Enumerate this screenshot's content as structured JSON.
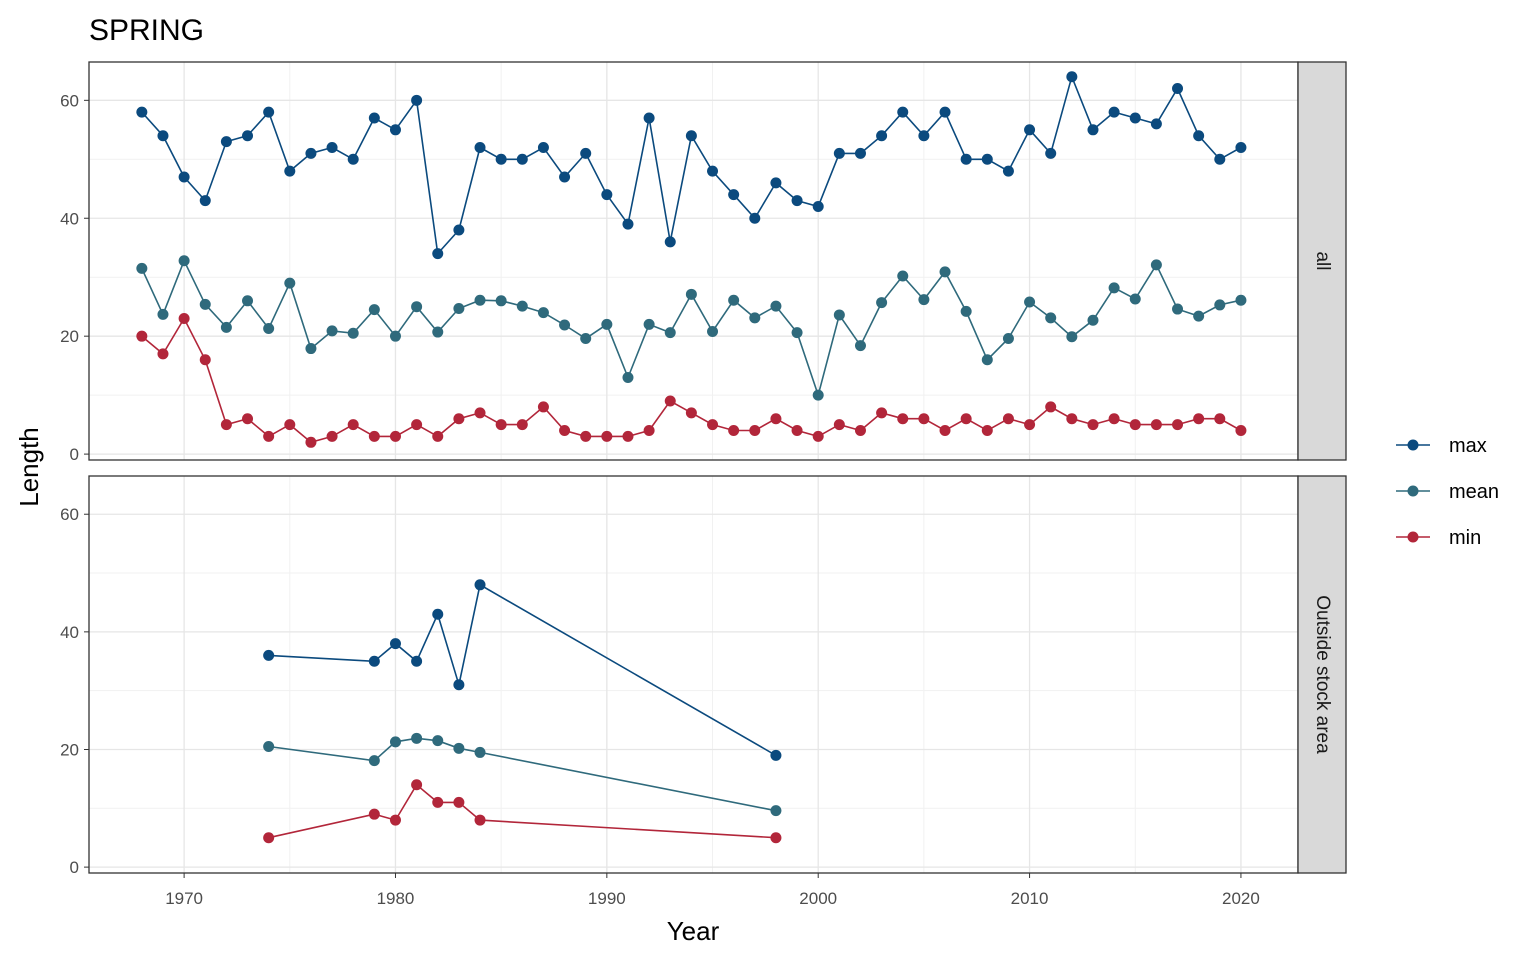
{
  "chart_data": {
    "type": "line",
    "title": "SPRING",
    "xlabel": "Year",
    "ylabel": "Length",
    "xlim": [
      1965.5,
      2022.7
    ],
    "ylim": [
      -1,
      66.5
    ],
    "x_ticks": [
      1970,
      1980,
      1990,
      2000,
      2010,
      2020
    ],
    "y_ticks": [
      0,
      20,
      40,
      60
    ],
    "grid": true,
    "legend_position": "right",
    "series_colors": {
      "max": "#0b4a7e",
      "mean": "#2f6a7c",
      "min": "#b2263a"
    },
    "legend": [
      {
        "name": "max",
        "color": "#0b4a7e"
      },
      {
        "name": "mean",
        "color": "#2f6a7c"
      },
      {
        "name": "min",
        "color": "#b2263a"
      }
    ],
    "panels": [
      {
        "strip": "all",
        "series": [
          {
            "name": "max",
            "x": [
              1968,
              1969,
              1970,
              1971,
              1972,
              1973,
              1974,
              1975,
              1976,
              1977,
              1978,
              1979,
              1980,
              1981,
              1982,
              1983,
              1984,
              1985,
              1986,
              1987,
              1988,
              1989,
              1990,
              1991,
              1992,
              1993,
              1994,
              1995,
              1996,
              1997,
              1998,
              1999,
              2000,
              2001,
              2002,
              2003,
              2004,
              2005,
              2006,
              2007,
              2008,
              2009,
              2010,
              2011,
              2012,
              2013,
              2014,
              2015,
              2016,
              2017,
              2018,
              2019,
              2020
            ],
            "y": [
              58,
              54,
              47,
              43,
              53,
              54,
              58,
              48,
              51,
              52,
              50,
              57,
              55,
              60,
              34,
              38,
              52,
              50,
              50,
              52,
              47,
              51,
              44,
              39,
              57,
              36,
              54,
              48,
              44,
              40,
              46,
              43,
              42,
              51,
              51,
              54,
              58,
              54,
              58,
              50,
              50,
              48,
              55,
              51,
              64,
              55,
              58,
              57,
              56,
              62,
              54,
              50,
              52
            ]
          },
          {
            "name": "mean",
            "x": [
              1968,
              1969,
              1970,
              1971,
              1972,
              1973,
              1974,
              1975,
              1976,
              1977,
              1978,
              1979,
              1980,
              1981,
              1982,
              1983,
              1984,
              1985,
              1986,
              1987,
              1988,
              1989,
              1990,
              1991,
              1992,
              1993,
              1994,
              1995,
              1996,
              1997,
              1998,
              1999,
              2000,
              2001,
              2002,
              2003,
              2004,
              2005,
              2006,
              2007,
              2008,
              2009,
              2010,
              2011,
              2012,
              2013,
              2014,
              2015,
              2016,
              2017,
              2018,
              2019,
              2020
            ],
            "y": [
              31.5,
              23.7,
              32.8,
              25.4,
              21.5,
              26.0,
              21.3,
              29.0,
              17.9,
              20.9,
              20.5,
              24.5,
              20.0,
              25.0,
              20.7,
              24.7,
              26.1,
              26.0,
              25.1,
              24.0,
              21.9,
              19.6,
              22.0,
              13.0,
              22.0,
              20.6,
              27.1,
              20.8,
              26.1,
              23.1,
              25.1,
              20.6,
              10.0,
              23.6,
              18.4,
              25.7,
              30.2,
              26.2,
              30.9,
              24.2,
              16.0,
              19.6,
              25.8,
              23.1,
              19.9,
              22.7,
              28.2,
              26.3,
              32.1,
              24.6,
              23.4,
              25.3,
              26.1
            ]
          },
          {
            "name": "min",
            "x": [
              1968,
              1969,
              1970,
              1971,
              1972,
              1973,
              1974,
              1975,
              1976,
              1977,
              1978,
              1979,
              1980,
              1981,
              1982,
              1983,
              1984,
              1985,
              1986,
              1987,
              1988,
              1989,
              1990,
              1991,
              1992,
              1993,
              1994,
              1995,
              1996,
              1997,
              1998,
              1999,
              2000,
              2001,
              2002,
              2003,
              2004,
              2005,
              2006,
              2007,
              2008,
              2009,
              2010,
              2011,
              2012,
              2013,
              2014,
              2015,
              2016,
              2017,
              2018,
              2019,
              2020
            ],
            "y": [
              20,
              17,
              23,
              16,
              5,
              6,
              3,
              5,
              2,
              3,
              5,
              3,
              3,
              5,
              3,
              6,
              7,
              5,
              5,
              8,
              4,
              3,
              3,
              3,
              4,
              9,
              7,
              5,
              4,
              4,
              6,
              4,
              3,
              5,
              4,
              7,
              6,
              6,
              4,
              6,
              4,
              6,
              5,
              8,
              6,
              5,
              6,
              5,
              5,
              5,
              6,
              6,
              4
            ]
          }
        ]
      },
      {
        "strip": "Outside stock area",
        "series": [
          {
            "name": "max",
            "x": [
              1974,
              1979,
              1980,
              1981,
              1982,
              1983,
              1984,
              1998
            ],
            "y": [
              36,
              35,
              38,
              35,
              43,
              31,
              48,
              19
            ]
          },
          {
            "name": "mean",
            "x": [
              1974,
              1979,
              1980,
              1981,
              1982,
              1983,
              1984,
              1998
            ],
            "y": [
              20.5,
              18.1,
              21.3,
              21.9,
              21.5,
              20.2,
              19.5,
              9.6
            ]
          },
          {
            "name": "min",
            "x": [
              1974,
              1979,
              1980,
              1981,
              1982,
              1983,
              1984,
              1998
            ],
            "y": [
              5,
              9,
              8,
              14,
              11,
              11,
              8,
              5
            ]
          }
        ]
      }
    ]
  }
}
